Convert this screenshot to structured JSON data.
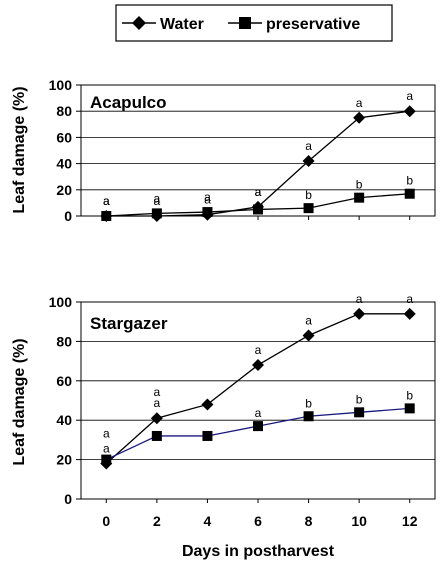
{
  "legend": {
    "series": [
      {
        "name": "Water",
        "marker": "diamond"
      },
      {
        "name": "preservative",
        "marker": "square"
      }
    ]
  },
  "chart_data": [
    {
      "type": "line",
      "title": "Acapulco",
      "xlabel": "",
      "ylabel": "Leaf damage (%)",
      "x": [
        0,
        2,
        4,
        6,
        8,
        10,
        12
      ],
      "xlim": [
        -1,
        13
      ],
      "ylim": [
        0,
        100
      ],
      "yticks": [
        "0",
        "20",
        "40",
        "60",
        "80",
        "100"
      ],
      "grid": "horizontal",
      "series": [
        {
          "name": "Water",
          "color": "#000000",
          "marker": "diamond",
          "values": [
            0,
            0,
            1,
            7,
            42,
            75,
            80
          ],
          "labels": [
            "a",
            "a",
            "a",
            "a",
            "a",
            "a",
            "a"
          ]
        },
        {
          "name": "preservative",
          "color": "#000000",
          "marker": "square",
          "values": [
            0,
            2,
            3,
            5,
            6,
            14,
            17
          ],
          "labels": [
            "a",
            "a",
            "a",
            "a",
            "b",
            "b",
            "b"
          ]
        }
      ]
    },
    {
      "type": "line",
      "title": "Stargazer",
      "xlabel": "Days in postharvest",
      "ylabel": "Leaf damage (%)",
      "x": [
        0,
        2,
        4,
        6,
        8,
        10,
        12
      ],
      "xlim": [
        -1,
        13
      ],
      "ylim": [
        0,
        100
      ],
      "yticks": [
        "0",
        "20",
        "40",
        "60",
        "80",
        "100"
      ],
      "xticks": [
        "0",
        "2",
        "4",
        "6",
        "8",
        "10",
        "12"
      ],
      "grid": "horizontal",
      "series": [
        {
          "name": "Water",
          "color": "#000000",
          "marker": "diamond",
          "values": [
            18,
            41,
            48,
            68,
            83,
            94,
            94
          ],
          "labels": [
            "a",
            "a",
            "",
            "a",
            "a",
            "a",
            "a"
          ]
        },
        {
          "name": "preservative",
          "color": "#1a1a80",
          "marker": "square",
          "values": [
            20,
            32,
            32,
            37,
            42,
            44,
            46
          ],
          "labels": [
            "a",
            "a",
            "",
            "a",
            "b",
            "b",
            "b"
          ]
        }
      ]
    }
  ]
}
